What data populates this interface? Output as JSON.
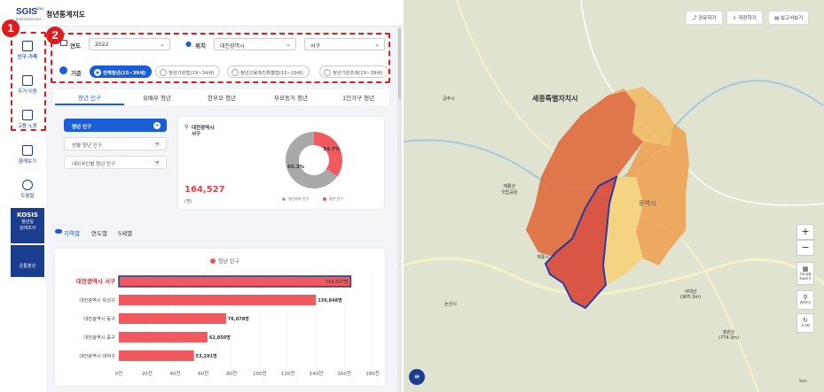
{
  "header": {
    "logo": "SGIS",
    "logo_plus": "plus",
    "logo_sub": "통계지리정보서비스",
    "title": "청년통계지도"
  },
  "sidebar": {
    "items": [
      {
        "label": "인구·가족"
      },
      {
        "label": "주거·이동"
      },
      {
        "label": "고용·노동"
      },
      {
        "label": "함께보기"
      },
      {
        "label": "도움말"
      }
    ],
    "kosis_title": "KOSIS",
    "kosis_sub": "청년실\n실태조사",
    "extra_label": "온통청년"
  },
  "badges": {
    "one": "1",
    "two": "2"
  },
  "filters": {
    "year_label": "연도",
    "year_value": "2022",
    "location_label": "위치",
    "city_value": "대전광역시",
    "district_value": "서구",
    "criteria_label": "기준",
    "criteria": [
      "전체청년(15~39세)",
      "청년기본법(19~34세)",
      "청년고용촉진특별법(15~29세)",
      "청년기본조례(19~39세)"
    ]
  },
  "tabs": [
    "청년 인구",
    "유배우 청년",
    "한부모 청년",
    "부모동거 청년",
    "1인가구 청년"
  ],
  "sub_items": [
    "청년 인구",
    "성별 청년 인구",
    "내외국인별 청년 인구"
  ],
  "summary": {
    "region_line1": "대전광역시",
    "region_line2": "서구",
    "value": "164,527",
    "unit": "(명)",
    "donut": {
      "youth_pct": 34.7,
      "other_pct": 65.3,
      "youth_label": "34.7%",
      "other_label": "65.3%",
      "legend_other": "청년외외 인구",
      "legend_youth": "청년 인구",
      "color_youth": "#f0595d",
      "color_other": "#a9a9a9"
    }
  },
  "view_tabs": [
    "지역별",
    "연도별",
    "5세별"
  ],
  "chart_data": {
    "type": "bar",
    "legend": "청년 인구",
    "categories": [
      "대전광역시 서구",
      "대전광역시 유성구",
      "대전광역시 동구",
      "대전광역시 중구",
      "대전광역시 대덕구"
    ],
    "values": [
      164527,
      139848,
      76078,
      62850,
      53291
    ],
    "value_labels": [
      "164,527명",
      "139,848명",
      "76,078명",
      "62,850명",
      "53,291명"
    ],
    "xticks": [
      "0천",
      "20천",
      "40천",
      "60천",
      "80천",
      "100천",
      "120천",
      "140천",
      "160천",
      "180천"
    ],
    "xlim": [
      0,
      180000
    ],
    "color": "#f0595d",
    "highlight_color": "#1a3d8f"
  },
  "map": {
    "buttons": {
      "share": "공유하기",
      "save": "저장하기",
      "report": "보고서보기"
    },
    "zoom_in": "+",
    "zoom_out": "−",
    "tools": [
      {
        "label": "지도유형\n바로보기"
      },
      {
        "label": "읍지POI"
      },
      {
        "label": "초기화"
      }
    ],
    "places": {
      "sejong": "세종특별자치시",
      "gongju": "공주시",
      "gyeryong": "계룡산\n국립공원",
      "nonsan": "논산시",
      "seodaesan": "서대산\n(905.3m)",
      "yeonggwan": "영관산\n(774.3m)",
      "daejeon_label": "광역시",
      "gyeryongsi": "계룡시"
    },
    "scale": "5km"
  }
}
